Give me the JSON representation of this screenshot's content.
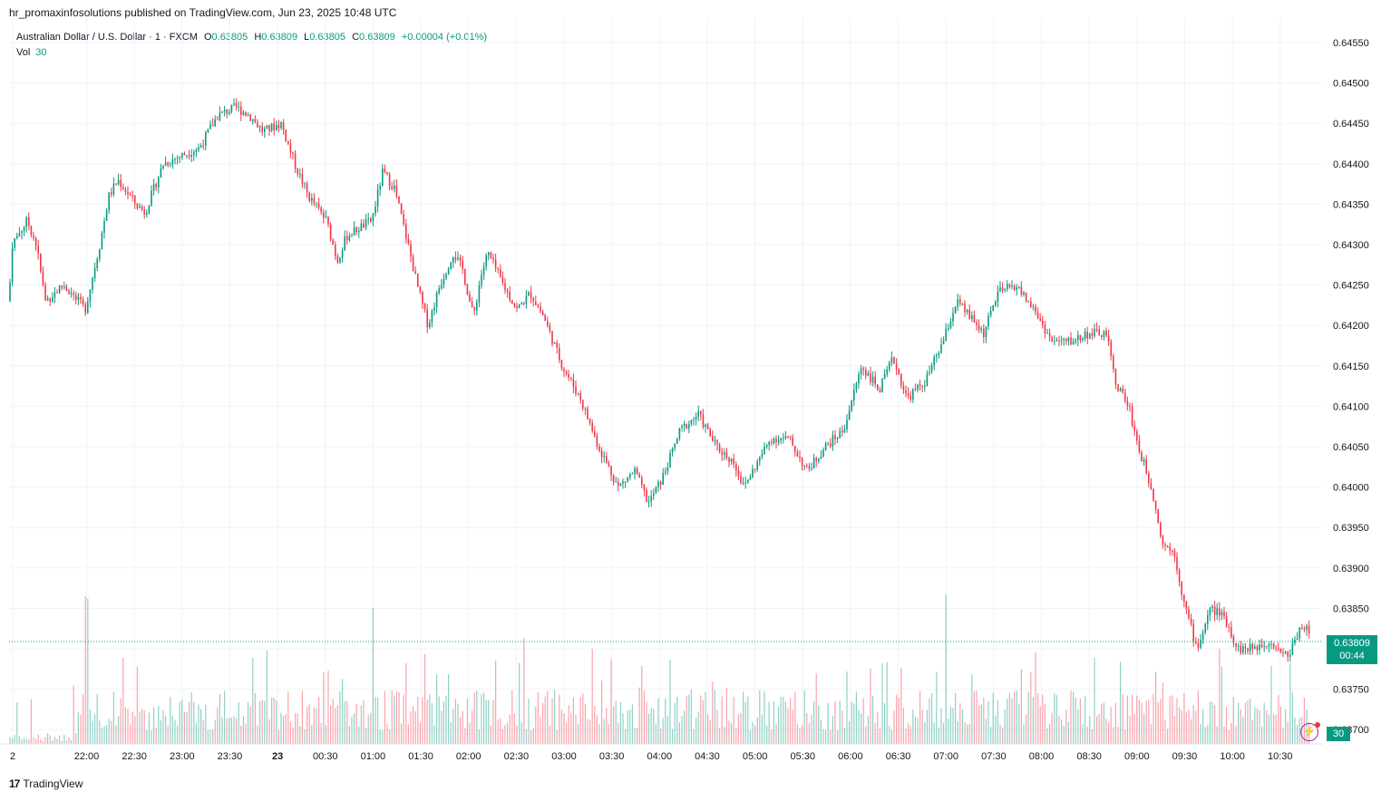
{
  "header": {
    "published": "hr_promaxinfosolutions published on TradingView.com, Jun 23, 2025 10:48 UTC"
  },
  "legend": {
    "symbol": "Australian Dollar / U.S. Dollar · 1 · FXCM",
    "o_label": "O",
    "o_value": "0.63805",
    "h_label": "H",
    "h_value": "0.63809",
    "l_label": "L",
    "l_value": "0.63805",
    "c_label": "C",
    "c_value": "0.63809",
    "change": "+0.00004 (+0.01%)",
    "vol_label": "Vol",
    "vol_value": "30"
  },
  "price_tag": {
    "price": "0.63809",
    "countdown": "00:44"
  },
  "volume_tag": "30",
  "footer": {
    "brand": "TradingView"
  },
  "colors": {
    "up": "#089981",
    "down": "#f23645",
    "grid": "#f0f3fa",
    "text": "#131722"
  },
  "icons": {
    "alert": "lightning-icon",
    "brand": "tradingview-logo-icon"
  },
  "chart_data": {
    "type": "candlestick",
    "title": "Australian Dollar / U.S. Dollar · 1 · FXCM",
    "ylim": [
      0.6368,
      0.6456
    ],
    "y_ticks": [
      "0.64550",
      "0.64500",
      "0.64450",
      "0.64400",
      "0.64350",
      "0.64300",
      "0.64250",
      "0.64200",
      "0.64150",
      "0.64100",
      "0.64050",
      "0.64000",
      "0.63950",
      "0.63900",
      "0.63850",
      "0.63800",
      "0.63750",
      "0.63700"
    ],
    "x_ticks": [
      "2",
      "22:00",
      "22:30",
      "23:00",
      "23:30",
      "23",
      "00:30",
      "01:00",
      "01:30",
      "02:00",
      "02:30",
      "03:00",
      "03:30",
      "04:00",
      "04:30",
      "05:00",
      "05:30",
      "06:00",
      "06:30",
      "07:00",
      "07:30",
      "08:00",
      "08:30",
      "09:00",
      "09:30",
      "10:00",
      "10:30"
    ],
    "last_price": 0.63809,
    "price_anchors": [
      [
        0,
        0.6423
      ],
      [
        3,
        0.643
      ],
      [
        20,
        0.6433
      ],
      [
        30,
        0.643
      ],
      [
        40,
        0.6423
      ],
      [
        60,
        0.6425
      ],
      [
        84,
        0.6422
      ],
      [
        100,
        0.643
      ],
      [
        110,
        0.6436
      ],
      [
        120,
        0.6438
      ],
      [
        140,
        0.6435
      ],
      [
        150,
        0.6434
      ],
      [
        170,
        0.644
      ],
      [
        190,
        0.6441
      ],
      [
        210,
        0.6442
      ],
      [
        230,
        0.6446
      ],
      [
        250,
        0.6447
      ],
      [
        265,
        0.6446
      ],
      [
        280,
        0.6444
      ],
      [
        300,
        0.6445
      ],
      [
        315,
        0.644
      ],
      [
        330,
        0.6436
      ],
      [
        350,
        0.6433
      ],
      [
        362,
        0.6428
      ],
      [
        372,
        0.6431
      ],
      [
        385,
        0.6432
      ],
      [
        400,
        0.6433
      ],
      [
        412,
        0.6439
      ],
      [
        425,
        0.6437
      ],
      [
        440,
        0.643
      ],
      [
        450,
        0.6425
      ],
      [
        462,
        0.642
      ],
      [
        475,
        0.6425
      ],
      [
        490,
        0.6429
      ],
      [
        500,
        0.6427
      ],
      [
        512,
        0.6421
      ],
      [
        520,
        0.6426
      ],
      [
        528,
        0.6429
      ],
      [
        545,
        0.6425
      ],
      [
        560,
        0.6422
      ],
      [
        575,
        0.6424
      ],
      [
        590,
        0.6421
      ],
      [
        610,
        0.6415
      ],
      [
        630,
        0.6411
      ],
      [
        650,
        0.6405
      ],
      [
        672,
        0.64
      ],
      [
        690,
        0.6402
      ],
      [
        705,
        0.6398
      ],
      [
        720,
        0.6401
      ],
      [
        740,
        0.6407
      ],
      [
        760,
        0.6409
      ],
      [
        780,
        0.6405
      ],
      [
        800,
        0.6403
      ],
      [
        810,
        0.64
      ],
      [
        825,
        0.6403
      ],
      [
        840,
        0.6406
      ],
      [
        860,
        0.6406
      ],
      [
        880,
        0.6402
      ],
      [
        900,
        0.6405
      ],
      [
        920,
        0.6407
      ],
      [
        940,
        0.6415
      ],
      [
        960,
        0.6412
      ],
      [
        975,
        0.6416
      ],
      [
        990,
        0.6411
      ],
      [
        1010,
        0.6413
      ],
      [
        1030,
        0.6418
      ],
      [
        1045,
        0.6423
      ],
      [
        1060,
        0.6421
      ],
      [
        1075,
        0.6419
      ],
      [
        1090,
        0.6424
      ],
      [
        1110,
        0.6425
      ],
      [
        1130,
        0.6422
      ],
      [
        1150,
        0.6418
      ],
      [
        1170,
        0.6418
      ],
      [
        1190,
        0.6419
      ],
      [
        1210,
        0.6419
      ],
      [
        1220,
        0.6413
      ],
      [
        1235,
        0.641
      ],
      [
        1245,
        0.6405
      ],
      [
        1260,
        0.64
      ],
      [
        1272,
        0.6393
      ],
      [
        1285,
        0.6392
      ],
      [
        1295,
        0.6386
      ],
      [
        1310,
        0.638
      ],
      [
        1325,
        0.6385
      ],
      [
        1340,
        0.6384
      ],
      [
        1355,
        0.638
      ],
      [
        1370,
        0.638
      ],
      [
        1390,
        0.6381
      ],
      [
        1410,
        0.6379
      ],
      [
        1425,
        0.6383
      ],
      [
        1445,
        0.6381
      ]
    ],
    "volume_axis_max": 200
  }
}
